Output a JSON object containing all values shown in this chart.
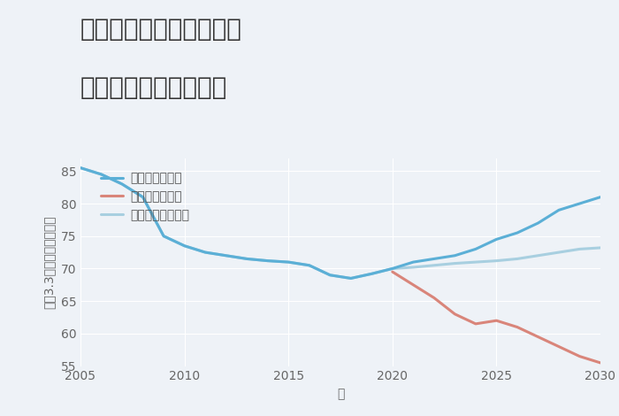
{
  "title_line1": "奈良県奈良市上深川町の",
  "title_line2": "中古戸建ての価格推移",
  "xlabel": "年",
  "ylabel": "坪（3.3㎡）単価（万円）",
  "background_color": "#eef2f7",
  "plot_background": "#eef2f7",
  "xlim": [
    2005,
    2030
  ],
  "ylim": [
    55,
    87
  ],
  "yticks": [
    55,
    60,
    65,
    70,
    75,
    80,
    85
  ],
  "xticks": [
    2005,
    2010,
    2015,
    2020,
    2025,
    2030
  ],
  "good_scenario": {
    "label": "グッドシナリオ",
    "color": "#5bafd6",
    "x": [
      2005,
      2006,
      2007,
      2008,
      2009,
      2010,
      2011,
      2012,
      2013,
      2014,
      2015,
      2016,
      2017,
      2018,
      2019,
      2020,
      2021,
      2022,
      2023,
      2024,
      2025,
      2026,
      2027,
      2028,
      2029,
      2030
    ],
    "y": [
      85.5,
      84.5,
      83.0,
      81.0,
      75.0,
      73.5,
      72.5,
      72.0,
      71.5,
      71.2,
      71.0,
      70.5,
      69.0,
      68.5,
      69.2,
      70.0,
      71.0,
      71.5,
      72.0,
      73.0,
      74.5,
      75.5,
      77.0,
      79.0,
      80.0,
      81.0
    ]
  },
  "bad_scenario": {
    "label": "バッドシナリオ",
    "color": "#d9857a",
    "x": [
      2020,
      2021,
      2022,
      2023,
      2024,
      2025,
      2026,
      2027,
      2028,
      2029,
      2030
    ],
    "y": [
      69.5,
      67.5,
      65.5,
      63.0,
      61.5,
      62.0,
      61.0,
      59.5,
      58.0,
      56.5,
      55.5
    ]
  },
  "normal_scenario": {
    "label": "ノーマルシナリオ",
    "color": "#a8cfe0",
    "x": [
      2005,
      2006,
      2007,
      2008,
      2009,
      2010,
      2011,
      2012,
      2013,
      2014,
      2015,
      2016,
      2017,
      2018,
      2019,
      2020,
      2021,
      2022,
      2023,
      2024,
      2025,
      2026,
      2027,
      2028,
      2029,
      2030
    ],
    "y": [
      85.5,
      84.5,
      83.0,
      81.0,
      75.0,
      73.5,
      72.5,
      72.0,
      71.5,
      71.2,
      71.0,
      70.5,
      69.0,
      68.5,
      69.2,
      70.0,
      70.2,
      70.5,
      70.8,
      71.0,
      71.2,
      71.5,
      72.0,
      72.5,
      73.0,
      73.2
    ]
  },
  "grid_color": "#ffffff",
  "title_fontsize": 20,
  "label_fontsize": 10,
  "tick_fontsize": 10,
  "legend_fontsize": 10,
  "line_width": 2.2
}
